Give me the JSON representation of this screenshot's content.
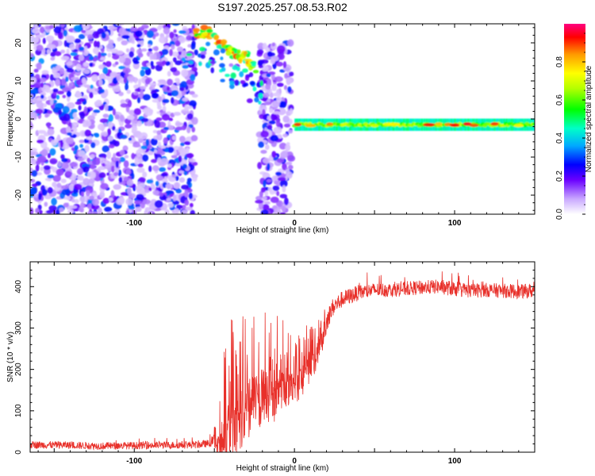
{
  "figure_title": "S197.2025.257.08.53.R02",
  "colors": {
    "snr_line": "#e8302a",
    "axis": "#000000",
    "colormap": [
      "#ffffff",
      "#b78cff",
      "#5a00ff",
      "#0000ff",
      "#00aaff",
      "#00ffc8",
      "#00ff00",
      "#b4ff00",
      "#ffff00",
      "#ff9900",
      "#ff0000",
      "#ff0080"
    ]
  },
  "chart_data": [
    {
      "type": "heatmap",
      "name": "spectrogram",
      "title": "S197.2025.257.08.53.R02",
      "xlabel": "Height of straight line (km)",
      "ylabel": "Frequency (Hz)",
      "xlim": [
        -165,
        150
      ],
      "ylim": [
        -25,
        25
      ],
      "xticks": [
        -100,
        0,
        100
      ],
      "yticks": [
        -20,
        -10,
        0,
        10,
        20
      ],
      "colorbar": {
        "label": "Normalized spectral amplitude",
        "range": [
          0,
          1
        ],
        "ticks": [
          0.0,
          0.2,
          0.4,
          0.6,
          0.8
        ]
      },
      "regions": [
        {
          "name": "broadband noise (below ground)",
          "x": [
            -165,
            -62
          ],
          "y": [
            -25,
            25
          ],
          "amplitude": [
            0.05,
            0.35
          ]
        },
        {
          "name": "noise strip",
          "x": [
            -22,
            -2
          ],
          "y": [
            -25,
            20
          ],
          "amplitude": [
            0.05,
            0.3
          ]
        },
        {
          "name": "direct signal line",
          "x": [
            0,
            150
          ],
          "y_center": -1.5,
          "halfwidth_hz": 1.6,
          "amplitude": [
            0.45,
            0.95
          ]
        },
        {
          "name": "chirp tail",
          "points": [
            [
              -62,
              22
            ],
            [
              -55,
              23
            ],
            [
              -48,
              21
            ],
            [
              -42,
              18
            ],
            [
              -36,
              17
            ],
            [
              -30,
              16
            ],
            [
              -24,
              13
            ]
          ],
          "amplitude": [
            0.45,
            0.9
          ]
        }
      ]
    },
    {
      "type": "line",
      "name": "snr",
      "xlabel": "Height of straight line (km)",
      "ylabel": "SNR (10 * v/v)",
      "xlim": [
        -165,
        150
      ],
      "ylim": [
        0,
        460
      ],
      "xticks": [
        -100,
        0,
        100
      ],
      "yticks": [
        0,
        100,
        200,
        300,
        400
      ],
      "series": [
        {
          "name": "SNR",
          "x": [
            -165,
            -140,
            -120,
            -100,
            -80,
            -60,
            -52,
            -48,
            -44,
            -40,
            -36,
            -30,
            -24,
            -18,
            -12,
            -6,
            0,
            6,
            12,
            18,
            24,
            30,
            40,
            50,
            60,
            70,
            80,
            90,
            100,
            110,
            120,
            130,
            140,
            150
          ],
          "base": [
            18,
            17,
            15,
            16,
            17,
            18,
            22,
            40,
            90,
            150,
            140,
            175,
            190,
            200,
            200,
            205,
            205,
            215,
            245,
            300,
            350,
            370,
            385,
            392,
            392,
            395,
            398,
            400,
            395,
            390,
            392,
            390,
            388,
            390
          ],
          "spread": [
            18,
            18,
            18,
            18,
            18,
            18,
            18,
            50,
            180,
            180,
            170,
            170,
            160,
            150,
            140,
            120,
            100,
            90,
            70,
            55,
            45,
            40,
            38,
            35,
            35,
            35,
            35,
            35,
            38,
            35,
            35,
            35,
            35,
            35
          ]
        }
      ]
    }
  ]
}
